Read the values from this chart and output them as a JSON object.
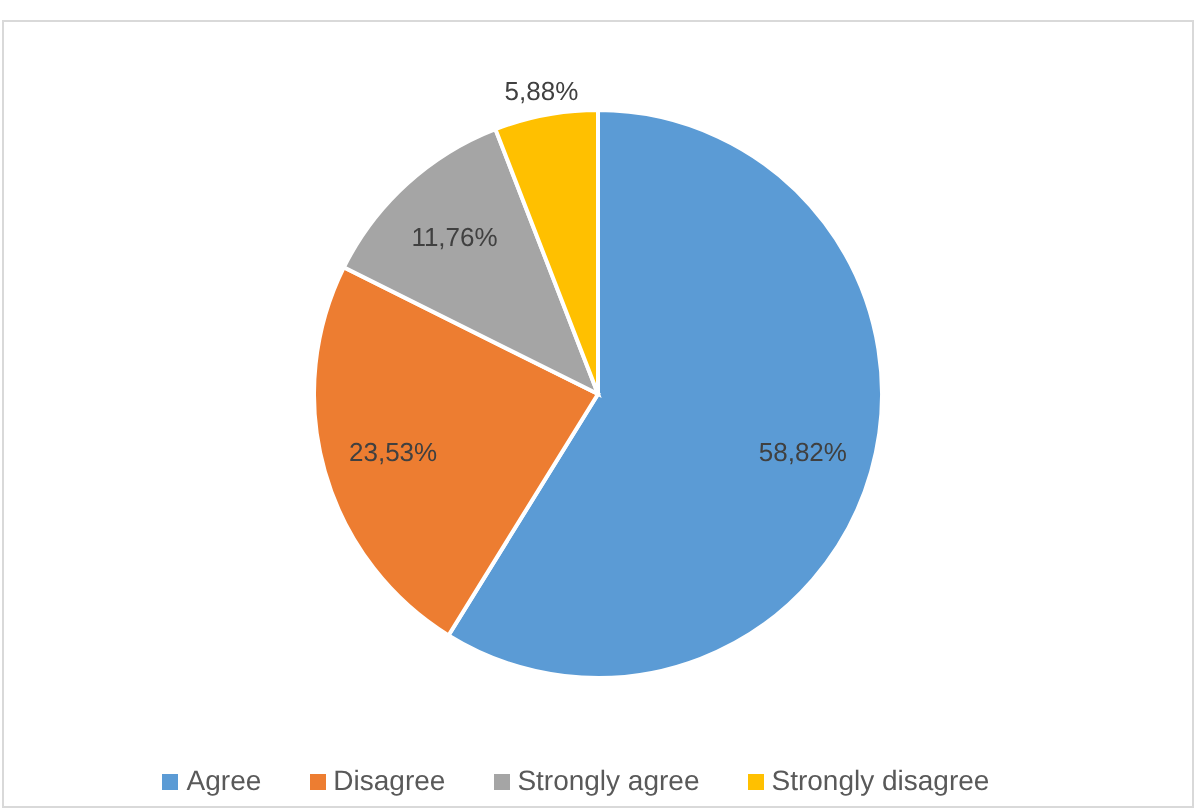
{
  "chart_data": {
    "type": "pie",
    "categories": [
      "Agree",
      "Disagree",
      "Strongly agree",
      "Strongly disagree"
    ],
    "values": [
      58.82,
      23.53,
      11.76,
      5.88
    ],
    "colors": [
      "#5b9bd5",
      "#ed7d31",
      "#a5a5a5",
      "#ffc000"
    ],
    "value_labels": [
      "58,82%",
      "23,53%",
      "11,76%",
      "5,88%"
    ],
    "legend": "bottom"
  }
}
